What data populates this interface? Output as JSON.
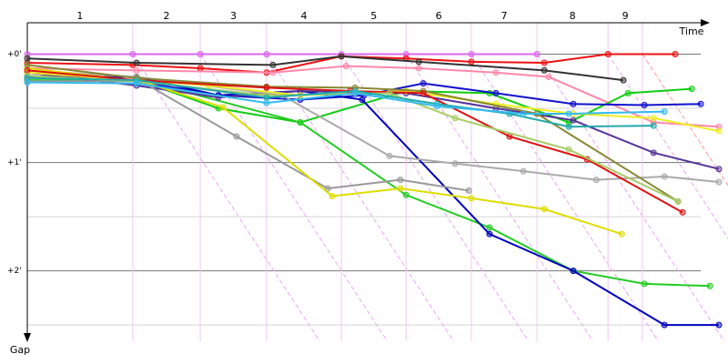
{
  "chart_data": {
    "type": "line",
    "x_label": "Time",
    "y_label": "Gap",
    "xlim": [
      0,
      21.71
    ],
    "ylim": [
      -0.29,
      2.65
    ],
    "yticks": [
      {
        "value": 0,
        "label": "+0'"
      },
      {
        "value": 1,
        "label": "+1'"
      },
      {
        "value": 2,
        "label": "+2'"
      }
    ],
    "minor_yticks": [
      0.5,
      1.5,
      2.5
    ],
    "lap_lines": [
      3.31,
      5.43,
      7.51,
      9.86,
      11.89,
      13.94,
      16.0,
      18.23,
      19.31
    ],
    "lap_labels": [
      "1",
      "2",
      "3",
      "4",
      "5",
      "6",
      "7",
      "8",
      "9"
    ],
    "series": [
      {
        "color": "#dd66ee",
        "x": [
          0,
          3.31,
          5.43,
          7.51,
          9.86,
          11.89,
          13.94,
          16.0
        ],
        "values": [
          0,
          0,
          0,
          0,
          0,
          0,
          0,
          0
        ]
      },
      {
        "color": "#ee1111",
        "x": [
          0,
          3.31,
          5.43,
          7.51,
          9.86,
          11.89,
          13.94,
          16.23,
          18.23,
          20.34
        ],
        "values": [
          0.08,
          0.1,
          0.13,
          0.17,
          0.02,
          0.04,
          0.07,
          0.08,
          0,
          0
        ]
      },
      {
        "color": "#333333",
        "x": [
          0,
          3.43,
          7.71,
          9.86,
          12.29,
          16.23,
          18.71
        ],
        "values": [
          0.04,
          0.08,
          0.1,
          0.02,
          0.07,
          0.15,
          0.24
        ]
      },
      {
        "color": "#ff88aa",
        "x": [
          0,
          3.43,
          7.71,
          10.0,
          12.29,
          14.71,
          16.37,
          19.66,
          21.71
        ],
        "values": [
          0.13,
          0.15,
          0.17,
          0.11,
          0.13,
          0.17,
          0.21,
          0.63,
          0.67
        ]
      },
      {
        "color": "#11cc11",
        "x": [
          0,
          3.57,
          6.0,
          8.57,
          11.89,
          14.51,
          17.0,
          18.86,
          20.86
        ],
        "values": [
          0.2,
          0.25,
          0.5,
          0.63,
          0.34,
          0.36,
          0.63,
          0.36,
          0.32
        ]
      },
      {
        "color": "#22cc22",
        "x": [
          0,
          3.57,
          8.57,
          11.89,
          14.51,
          17.14,
          19.37,
          21.43
        ],
        "values": [
          0.24,
          0.24,
          0.63,
          1.3,
          1.6,
          2.0,
          2.12,
          2.14
        ]
      },
      {
        "color": "#1111cc",
        "x": [
          0,
          3.43,
          6.0,
          8.57,
          10.57,
          12.43,
          14.71,
          17.14,
          19.37,
          21.14
        ],
        "values": [
          0.2,
          0.25,
          0.38,
          0.42,
          0.38,
          0.27,
          0.36,
          0.46,
          0.47,
          0.46
        ]
      },
      {
        "color": "#0000bb",
        "x": [
          0,
          3.43,
          6.0,
          8.57,
          10.51,
          14.51,
          17.14,
          20.0,
          21.71
        ],
        "values": [
          0.21,
          0.21,
          0.38,
          0.34,
          0.42,
          1.66,
          2.0,
          2.5,
          2.5
        ]
      },
      {
        "color": "#553399",
        "x": [
          0,
          3.43,
          6.0,
          8.57,
          11.89,
          14.71,
          17.14,
          19.66,
          21.71
        ],
        "values": [
          0.17,
          0.29,
          0.4,
          0.34,
          0.36,
          0.5,
          0.61,
          0.91,
          1.06
        ]
      },
      {
        "color": "#999999",
        "x": [
          0,
          3.57,
          6.57,
          9.43,
          11.71,
          13.86
        ],
        "values": [
          0.25,
          0.25,
          0.76,
          1.24,
          1.16,
          1.26
        ]
      },
      {
        "color": "#aaaaaa",
        "x": [
          0,
          3.43,
          8.0,
          11.37,
          13.43,
          15.57,
          17.86,
          20.0,
          21.71
        ],
        "values": [
          0.15,
          0.21,
          0.38,
          0.94,
          1.01,
          1.08,
          1.16,
          1.13,
          1.18
        ]
      },
      {
        "color": "#dddd00",
        "x": [
          0,
          3.57,
          6.14,
          9.57,
          11.71,
          13.94,
          16.23,
          18.66
        ],
        "values": [
          0.13,
          0.25,
          0.49,
          1.31,
          1.24,
          1.33,
          1.43,
          1.66
        ]
      },
      {
        "color": "#eeee22",
        "x": [
          0,
          3.43,
          5.71,
          8.57,
          11.89,
          14.71,
          17.14,
          19.66,
          21.71
        ],
        "values": [
          0.17,
          0.24,
          0.29,
          0.38,
          0.34,
          0.46,
          0.55,
          0.59,
          0.71
        ]
      },
      {
        "color": "#888833",
        "x": [
          0,
          3.43,
          7.51,
          10.29,
          12.43,
          16.0,
          20.43
        ],
        "values": [
          0.1,
          0.22,
          0.3,
          0.31,
          0.34,
          0.55,
          1.36
        ]
      },
      {
        "color": "#dd1111",
        "x": [
          0,
          3.43,
          7.51,
          10.14,
          12.43,
          15.14,
          17.57,
          20.57
        ],
        "values": [
          0.15,
          0.24,
          0.31,
          0.34,
          0.36,
          0.76,
          0.97,
          1.46
        ]
      },
      {
        "color": "#aacc66",
        "x": [
          0,
          3.43,
          7.51,
          11.37,
          13.43,
          17.0,
          20.43
        ],
        "values": [
          0.2,
          0.25,
          0.38,
          0.36,
          0.59,
          0.88,
          1.36
        ]
      },
      {
        "color": "#22aaaa",
        "x": [
          0,
          3.43,
          7.51,
          10.29,
          12.86,
          15.14,
          17.0,
          19.66
        ],
        "values": [
          0.22,
          0.24,
          0.4,
          0.34,
          0.46,
          0.55,
          0.67,
          0.66
        ]
      },
      {
        "color": "#33bbee",
        "x": [
          0,
          3.43,
          7.51,
          10.29,
          12.86,
          15.57,
          17.0,
          20.0
        ],
        "values": [
          0.26,
          0.27,
          0.45,
          0.36,
          0.48,
          0.55,
          0.55,
          0.53
        ]
      }
    ]
  }
}
